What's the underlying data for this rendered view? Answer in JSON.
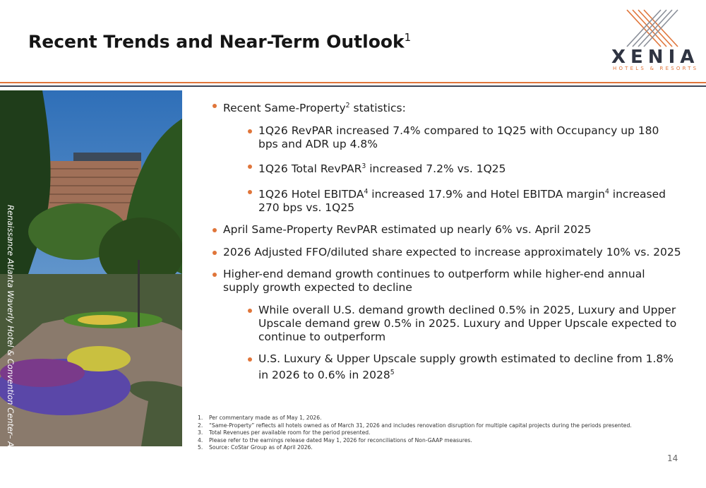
{
  "header": {
    "title": [
      {
        "text": "Recent Trends and Near-Term Outlook"
      },
      {
        "sup": "1"
      }
    ],
    "logo": {
      "name": "XENIA",
      "tagline": "HOTELS & RESORTS"
    }
  },
  "photo_caption": "Renaissance Atlanta Waverly Hotel & Convention Center– Atlanta, GA",
  "bullets": [
    {
      "level": 1,
      "parts": [
        {
          "text": "Recent Same-Property"
        },
        {
          "sup": "2"
        },
        {
          "text": " statistics:"
        }
      ]
    },
    {
      "level": 2,
      "parts": [
        {
          "text": "1Q26 RevPAR increased 7.4% compared to 1Q25 with Occupancy up 180 bps and ADR up 4.8%"
        }
      ]
    },
    {
      "level": 2,
      "parts": [
        {
          "text": "1Q26 Total RevPAR"
        },
        {
          "sup": "3"
        },
        {
          "text": " increased 7.2% vs. 1Q25"
        }
      ]
    },
    {
      "level": 2,
      "parts": [
        {
          "text": "1Q26 Hotel EBITDA"
        },
        {
          "sup": "4"
        },
        {
          "text": " increased 17.9% and Hotel EBITDA margin"
        },
        {
          "sup": "4"
        },
        {
          "text": " increased 270 bps vs. 1Q25"
        }
      ]
    },
    {
      "level": 1,
      "parts": [
        {
          "text": "April Same-Property RevPAR estimated up nearly 6% vs. April 2025"
        }
      ]
    },
    {
      "level": 1,
      "parts": [
        {
          "text": "2026 Adjusted FFO/diluted share expected to increase approximately 10% vs. 2025"
        }
      ]
    },
    {
      "level": 1,
      "parts": [
        {
          "text": "Higher-end demand growth continues to outperform while higher-end annual supply growth expected to decline"
        }
      ]
    },
    {
      "level": 2,
      "parts": [
        {
          "text": "While overall U.S. demand growth declined 0.5% in 2025, Luxury and Upper Upscale demand grew 0.5% in 2025. Luxury and Upper Upscale expected to continue to outperform"
        }
      ]
    },
    {
      "level": 2,
      "parts": [
        {
          "text": "U.S. Luxury & Upper Upscale supply growth estimated to decline from 1.8% in 2026 to 0.6% in 2028"
        },
        {
          "sup": "5"
        }
      ]
    }
  ],
  "footnotes": [
    {
      "number": "1.",
      "text": "Per commentary made as of May 1, 2026."
    },
    {
      "number": "2.",
      "text": "“Same-Property” reflects all hotels owned as of March 31, 2026 and includes renovation disruption for multiple capital projects during the periods presented."
    },
    {
      "number": "3.",
      "text": "Total Revenues per available room for the period presented."
    },
    {
      "number": "4.",
      "text": "Please refer to the earnings release dated May 1, 2026 for reconciliations of Non-GAAP measures."
    },
    {
      "number": "5.",
      "text": "Source: CoStar Group as of April 2026."
    }
  ],
  "page_number": 14
}
